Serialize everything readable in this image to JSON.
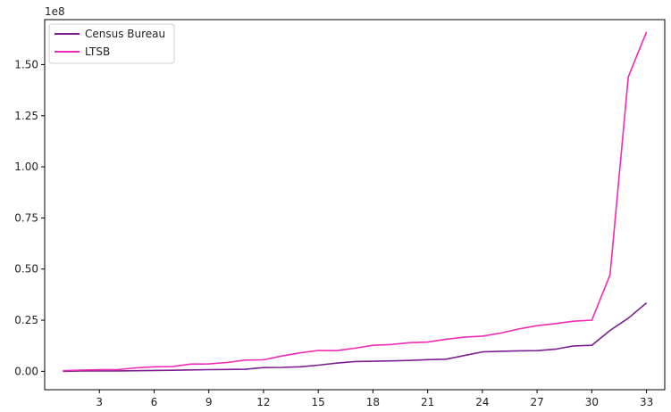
{
  "chart_data": {
    "type": "line",
    "title": "",
    "xlabel": "",
    "ylabel": "",
    "y_offset_label": "1e8",
    "xlim": [
      0,
      34
    ],
    "ylim": [
      -0.09,
      1.72
    ],
    "x_ticks": [
      3,
      6,
      9,
      12,
      15,
      18,
      21,
      24,
      27,
      30,
      33
    ],
    "x_tick_labels": [
      "3",
      "6",
      "9",
      "12",
      "15",
      "18",
      "21",
      "24",
      "27",
      "30",
      "33"
    ],
    "y_ticks": [
      0.0,
      0.25,
      0.5,
      0.75,
      1.0,
      1.25,
      1.5
    ],
    "y_tick_labels": [
      "0.00",
      "0.25",
      "0.50",
      "0.75",
      "1.00",
      "1.25",
      "1.50"
    ],
    "grid": false,
    "legend_position": "top-left",
    "x": [
      1,
      2,
      3,
      4,
      5,
      6,
      7,
      8,
      9,
      10,
      11,
      12,
      13,
      14,
      15,
      16,
      17,
      18,
      19,
      20,
      21,
      22,
      23,
      24,
      25,
      26,
      27,
      28,
      29,
      30,
      31,
      32,
      33
    ],
    "series": [
      {
        "name": "Census Bureau",
        "color": "#7b1f8f",
        "values": [
          0.0,
          0.002,
          0.002,
          0.002,
          0.003,
          0.004,
          0.005,
          0.007,
          0.008,
          0.009,
          0.01,
          0.018,
          0.019,
          0.022,
          0.03,
          0.04,
          0.048,
          0.049,
          0.051,
          0.053,
          0.057,
          0.059,
          0.077,
          0.095,
          0.098,
          0.1,
          0.101,
          0.108,
          0.124,
          0.127,
          0.2,
          0.26,
          0.335
        ]
      },
      {
        "name": "LTSB",
        "color": "#f02ab4",
        "values": [
          0.003,
          0.006,
          0.008,
          0.008,
          0.017,
          0.022,
          0.023,
          0.035,
          0.036,
          0.043,
          0.055,
          0.056,
          0.075,
          0.09,
          0.102,
          0.101,
          0.113,
          0.127,
          0.131,
          0.14,
          0.143,
          0.157,
          0.167,
          0.172,
          0.187,
          0.207,
          0.223,
          0.233,
          0.245,
          0.25,
          0.472,
          1.44,
          1.66
        ]
      }
    ]
  }
}
